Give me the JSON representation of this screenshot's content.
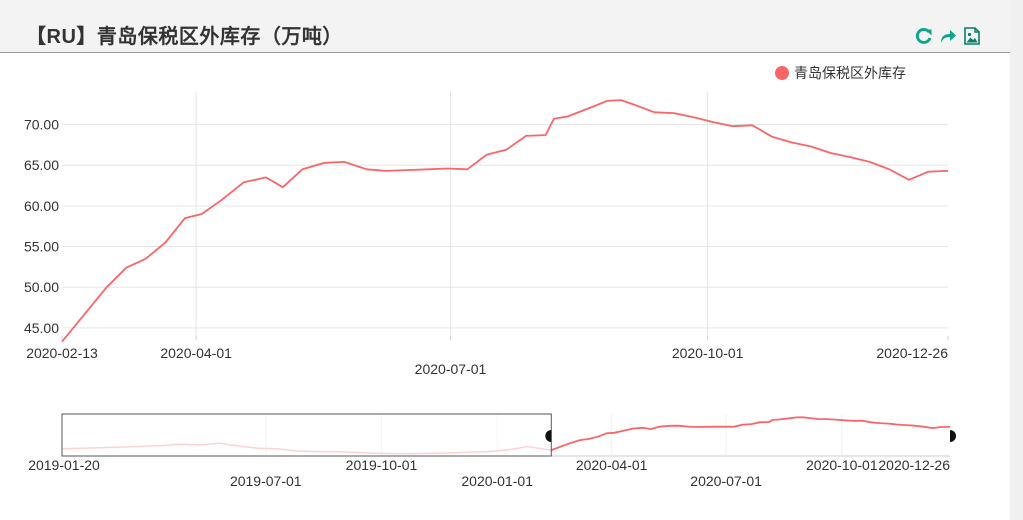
{
  "title": "【RU】青岛保税区外库存（万吨）",
  "toolbar": {
    "refresh_icon": "refresh-icon",
    "share_icon": "share-icon",
    "save_image_icon": "save-image-icon"
  },
  "colors": {
    "series": "#f8666a",
    "accent": "#0aa58a",
    "grid": "#e6e6e6",
    "axis": "#cccccc"
  },
  "chart_data": {
    "type": "line",
    "legend_position": "top-right",
    "grid": true,
    "ylim": [
      44,
      74
    ],
    "xlim": [
      "2020-02-13",
      "2020-12-26"
    ],
    "y_ticks": [
      "45.00",
      "50.00",
      "55.00",
      "60.00",
      "65.00",
      "70.00"
    ],
    "x_tick_labels": [
      {
        "label": "2020-02-13",
        "date": "2020-02-13",
        "row": 0
      },
      {
        "label": "2020-04-01",
        "date": "2020-04-01",
        "row": 0
      },
      {
        "label": "2020-07-01",
        "date": "2020-07-01",
        "row": 1
      },
      {
        "label": "2020-10-01",
        "date": "2020-10-01",
        "row": 0
      },
      {
        "label": "2020-12-26",
        "date": "2020-12-26",
        "row": 0
      }
    ],
    "series": [
      {
        "name": "青岛保税区外库存",
        "x": [
          "2020-02-13",
          "2020-02-29",
          "2020-03-07",
          "2020-03-14",
          "2020-03-21",
          "2020-03-28",
          "2020-04-03",
          "2020-04-10",
          "2020-04-18",
          "2020-04-26",
          "2020-05-02",
          "2020-05-09",
          "2020-05-17",
          "2020-05-24",
          "2020-06-01",
          "2020-06-08",
          "2020-06-15",
          "2020-06-23",
          "2020-06-30",
          "2020-07-07",
          "2020-07-14",
          "2020-07-21",
          "2020-07-28",
          "2020-08-04",
          "2020-08-07",
          "2020-08-12",
          "2020-08-21",
          "2020-08-26",
          "2020-08-31",
          "2020-09-05",
          "2020-09-12",
          "2020-09-19",
          "2020-09-26",
          "2020-10-03",
          "2020-10-10",
          "2020-10-17",
          "2020-10-24",
          "2020-10-31",
          "2020-11-07",
          "2020-11-14",
          "2020-11-21",
          "2020-11-28",
          "2020-12-05",
          "2020-12-12",
          "2020-12-19",
          "2020-12-26"
        ],
        "values": [
          43.3,
          50.0,
          52.4,
          53.5,
          55.5,
          58.5,
          59.0,
          60.7,
          62.9,
          63.5,
          62.3,
          64.5,
          65.3,
          65.4,
          64.5,
          64.3,
          64.4,
          64.5,
          64.6,
          64.5,
          66.3,
          66.9,
          68.6,
          68.7,
          70.7,
          71.0,
          72.2,
          72.9,
          73.0,
          72.4,
          71.5,
          71.4,
          70.9,
          70.3,
          69.8,
          69.9,
          68.5,
          67.8,
          67.3,
          66.5,
          66.0,
          65.4,
          64.5,
          63.2,
          64.2,
          64.3
        ]
      }
    ]
  },
  "navigator": {
    "x_tick_labels": [
      {
        "label": "2019-01-20",
        "date": "2019-01-20",
        "row": 0
      },
      {
        "label": "2019-07-01",
        "date": "2019-07-01",
        "row": 1
      },
      {
        "label": "2019-10-01",
        "date": "2019-10-01",
        "row": 0
      },
      {
        "label": "2020-01-01",
        "date": "2020-01-01",
        "row": 1
      },
      {
        "label": "2020-04-01",
        "date": "2020-04-01",
        "row": 0
      },
      {
        "label": "2020-07-01",
        "date": "2020-07-01",
        "row": 1
      },
      {
        "label": "2020-10-01",
        "date": "2020-10-01",
        "row": 0
      },
      {
        "label": "2020-12-26",
        "date": "2020-12-26",
        "row": 0
      }
    ],
    "history": {
      "x": [
        "2019-01-20",
        "2019-02-20",
        "2019-03-20",
        "2019-04-10",
        "2019-04-25",
        "2019-05-10",
        "2019-05-25",
        "2019-06-10",
        "2019-06-25",
        "2019-07-10",
        "2019-07-25",
        "2019-08-10",
        "2019-08-25",
        "2019-09-10",
        "2019-09-25",
        "2019-10-10",
        "2019-10-25",
        "2019-11-10",
        "2019-11-25",
        "2019-12-10",
        "2019-12-25",
        "2020-01-10",
        "2020-01-25",
        "2020-02-13"
      ],
      "values": [
        44.5,
        45.5,
        46.5,
        47.5,
        48.8,
        48.0,
        49.5,
        47.0,
        45.0,
        44.5,
        42.5,
        42.0,
        42.0,
        41.3,
        40.5,
        40.2,
        40.2,
        40.4,
        40.8,
        41.4,
        42.0,
        43.5,
        46.5,
        43.3
      ]
    },
    "window_start": "2020-02-13",
    "window_end": "2020-12-26"
  }
}
